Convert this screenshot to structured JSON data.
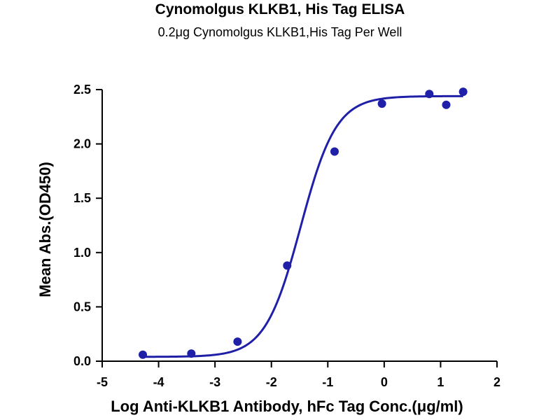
{
  "chart_data": {
    "type": "scatter",
    "title": "Cynomolgus KLKB1, His Tag ELISA",
    "subtitle": "0.2μg Cynomolgus KLKB1,His Tag Per Well",
    "xlabel": "Log Anti-KLKB1 Antibody, hFc Tag Conc.(μg/ml)",
    "ylabel": "Mean Abs.(OD450)",
    "xlim": [
      -5,
      2
    ],
    "ylim": [
      0,
      2.5
    ],
    "x_ticks": [
      "-5",
      "-4",
      "-3",
      "-2",
      "-1",
      "0",
      "1",
      "2"
    ],
    "y_ticks": [
      "0.0",
      "0.5",
      "1.0",
      "1.5",
      "2.0",
      "2.5"
    ],
    "points": [
      {
        "x": -4.28,
        "y": 0.06
      },
      {
        "x": -3.42,
        "y": 0.07
      },
      {
        "x": -2.6,
        "y": 0.18
      },
      {
        "x": -1.72,
        "y": 0.88
      },
      {
        "x": -0.88,
        "y": 1.93
      },
      {
        "x": -0.04,
        "y": 2.37
      },
      {
        "x": 0.8,
        "y": 2.46
      },
      {
        "x": 1.1,
        "y": 2.36
      },
      {
        "x": 1.4,
        "y": 2.48
      }
    ],
    "fit": {
      "model": "4PL",
      "bottom": 0.04,
      "top": 2.44,
      "log_ec50": -1.48,
      "hill": 1.38,
      "x_range": [
        -4.28,
        1.4
      ]
    },
    "color": "#1f1fa8",
    "grid": false,
    "legend": "none"
  }
}
